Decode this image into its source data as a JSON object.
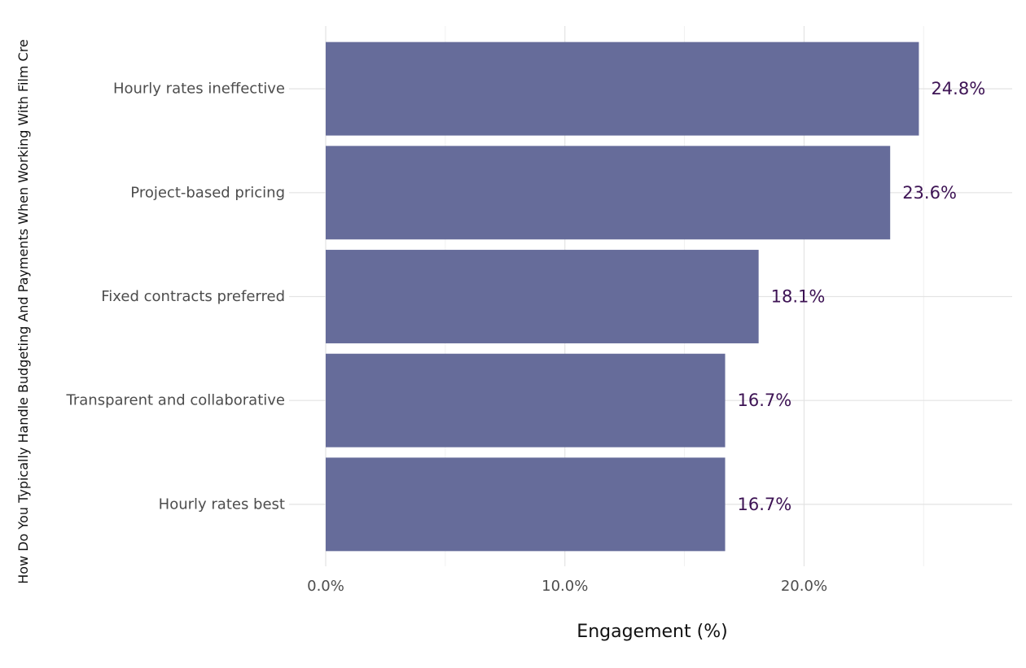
{
  "chart_data": {
    "type": "bar",
    "orientation": "horizontal",
    "title": "",
    "xlabel": "Engagement (%)",
    "ylabel": "How Do You Typically Handle Budgeting And Payments When Working With Film Cre",
    "categories": [
      "Hourly rates ineffective",
      "Project-based pricing",
      "Fixed contracts preferred",
      "Transparent and collaborative",
      "Hourly rates best"
    ],
    "values": [
      24.8,
      23.6,
      18.1,
      16.7,
      16.7
    ],
    "value_labels": [
      "24.8%",
      "23.6%",
      "18.1%",
      "16.7%",
      "16.7%"
    ],
    "xticks": [
      0,
      10,
      20
    ],
    "xtick_labels": [
      "0.0%",
      "10.0%",
      "20.0%"
    ],
    "xlim": [
      0,
      28.7
    ],
    "grid": true,
    "colors": {
      "bar": "#666c9a",
      "value_label": "#3d1354"
    }
  }
}
